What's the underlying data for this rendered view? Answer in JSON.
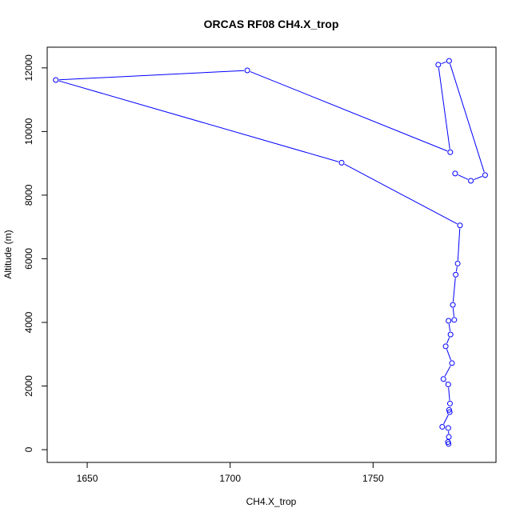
{
  "chart_data": {
    "type": "line",
    "title": "ORCAS RF08 CH4.X_trop",
    "xlabel": "CH4.X_trop",
    "ylabel": "Altitude (m)",
    "xlim": [
      1636,
      1793
    ],
    "ylim": [
      -400,
      12650
    ],
    "xticks": [
      1650,
      1700,
      1750
    ],
    "yticks": [
      0,
      2000,
      4000,
      6000,
      8000,
      10000,
      12000
    ],
    "grid": false,
    "series": [
      {
        "color": "#0000ff",
        "marker": "open-circle",
        "points": [
          {
            "x": 1776.4,
            "y": 180
          },
          {
            "x": 1776.2,
            "y": 240
          },
          {
            "x": 1776.5,
            "y": 400
          },
          {
            "x": 1776.3,
            "y": 680
          },
          {
            "x": 1774.2,
            "y": 720
          },
          {
            "x": 1776.8,
            "y": 1180
          },
          {
            "x": 1776.6,
            "y": 1250
          },
          {
            "x": 1776.9,
            "y": 1450
          },
          {
            "x": 1776.3,
            "y": 2050
          },
          {
            "x": 1774.6,
            "y": 2220
          },
          {
            "x": 1777.6,
            "y": 2720
          },
          {
            "x": 1775.4,
            "y": 3250
          },
          {
            "x": 1777.1,
            "y": 3620
          },
          {
            "x": 1776.4,
            "y": 4050
          },
          {
            "x": 1778.4,
            "y": 4080
          },
          {
            "x": 1777.9,
            "y": 4550
          },
          {
            "x": 1778.9,
            "y": 5500
          },
          {
            "x": 1779.6,
            "y": 5850
          },
          {
            "x": 1780.4,
            "y": 7050
          },
          {
            "x": 1739.0,
            "y": 9020
          },
          {
            "x": 1639.0,
            "y": 11620
          },
          {
            "x": 1706.0,
            "y": 11920
          },
          {
            "x": 1777.0,
            "y": 9350
          },
          {
            "x": 1772.8,
            "y": 12100
          },
          {
            "x": 1776.6,
            "y": 12220
          },
          {
            "x": 1789.2,
            "y": 8630
          },
          {
            "x": 1784.2,
            "y": 8450
          },
          {
            "x": 1778.7,
            "y": 8680
          }
        ]
      }
    ]
  }
}
